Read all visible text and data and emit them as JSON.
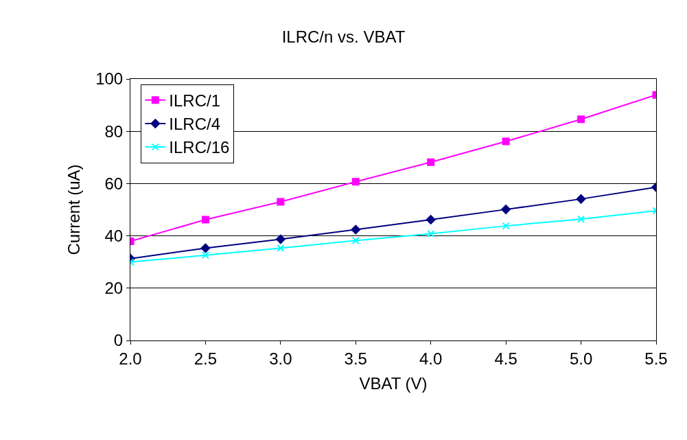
{
  "chart_data": {
    "type": "line",
    "title": "ILRC/n vs. VBAT",
    "xlabel": "VBAT (V)",
    "ylabel": "Current (uA)",
    "x": [
      2.0,
      2.5,
      3.0,
      3.5,
      4.0,
      4.5,
      5.0,
      5.5
    ],
    "series": [
      {
        "name": "ILRC/1",
        "color": "#ff00ff",
        "marker": "square",
        "values": [
          37.9,
          46.2,
          53.0,
          60.7,
          68.2,
          76.1,
          84.6,
          93.9
        ]
      },
      {
        "name": "ILRC/4",
        "color": "#000080",
        "marker": "diamond",
        "values": [
          31.3,
          35.3,
          38.7,
          42.4,
          46.2,
          50.1,
          54.1,
          58.6
        ]
      },
      {
        "name": "ILRC/16",
        "color": "#00ffff",
        "marker": "cross",
        "values": [
          30.0,
          32.6,
          35.3,
          38.2,
          40.8,
          43.8,
          46.4,
          49.6
        ]
      }
    ],
    "xlim": [
      2.0,
      5.5
    ],
    "xticks": [
      {
        "value": 2.0,
        "label": "2.0"
      },
      {
        "value": 2.5,
        "label": "2.5"
      },
      {
        "value": 3.0,
        "label": "3.0"
      },
      {
        "value": 3.5,
        "label": "3.5"
      },
      {
        "value": 4.0,
        "label": "4.0"
      },
      {
        "value": 4.5,
        "label": "4.5"
      },
      {
        "value": 5.0,
        "label": "5.0"
      },
      {
        "value": 5.5,
        "label": "5.5"
      }
    ],
    "ylim": [
      0,
      100
    ],
    "yticks": [
      0,
      20,
      40,
      60,
      80,
      100
    ],
    "grid": "y",
    "legend": "top left",
    "line_style": "solid"
  }
}
